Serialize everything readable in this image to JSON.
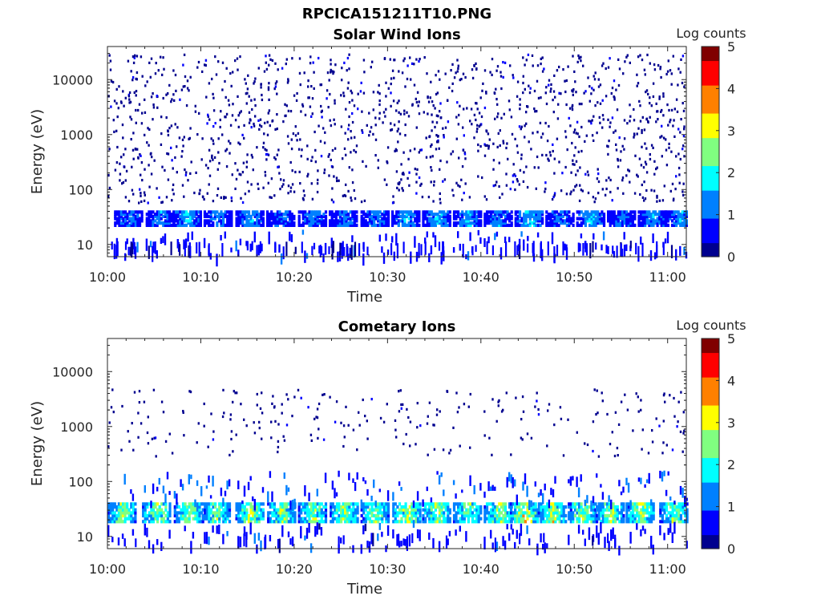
{
  "figure": {
    "title": "RPCICA151211T10.PNG"
  },
  "colors": {
    "colormap": [
      "#00008f",
      "#0000ff",
      "#0080ff",
      "#00ffff",
      "#80ff80",
      "#ffff00",
      "#ff8000",
      "#ff0000",
      "#800000"
    ],
    "axis": "#262626"
  },
  "chart_data": [
    {
      "type": "heatmap",
      "title": "Solar Wind Ions",
      "xlabel": "Time",
      "ylabel": "Energy (eV)",
      "y_scale": "log",
      "x_ticks": [
        "10:00",
        "10:10",
        "10:20",
        "10:30",
        "10:40",
        "10:50",
        "11:00"
      ],
      "y_ticks": [
        "10",
        "100",
        "1000",
        "10000"
      ],
      "xlim": [
        "10:00",
        "11:02"
      ],
      "ylim": [
        6,
        40000
      ],
      "colorbar": {
        "label": "Log counts",
        "range": [
          0,
          5
        ],
        "ticks": [
          "0",
          "1",
          "2",
          "3",
          "4",
          "5"
        ]
      },
      "background_counts": {
        "energy_range_eV": [
          60,
          30000
        ],
        "log_counts": 0.2
      },
      "bursts": [
        {
          "t_min": 2.2,
          "log_counts": 1.3
        },
        {
          "t_min": 5.6,
          "log_counts": 1.4
        },
        {
          "t_min": 8.5,
          "log_counts": 1.6
        },
        {
          "t_min": 11.8,
          "log_counts": 1.3
        },
        {
          "t_min": 15.2,
          "log_counts": 1.5
        },
        {
          "t_min": 18.5,
          "log_counts": 1.2
        },
        {
          "t_min": 21.9,
          "log_counts": 1.4
        },
        {
          "t_min": 25.2,
          "log_counts": 1.3
        },
        {
          "t_min": 28.6,
          "log_counts": 1.3
        },
        {
          "t_min": 31.9,
          "log_counts": 1.5
        },
        {
          "t_min": 35.2,
          "log_counts": 1.6
        },
        {
          "t_min": 38.5,
          "log_counts": 1.5
        },
        {
          "t_min": 41.8,
          "log_counts": 1.4
        },
        {
          "t_min": 45.1,
          "log_counts": 1.7
        },
        {
          "t_min": 48.4,
          "log_counts": 1.3
        },
        {
          "t_min": 51.7,
          "log_counts": 1.6
        },
        {
          "t_min": 55.0,
          "log_counts": 1.3
        },
        {
          "t_min": 58.3,
          "log_counts": 1.4
        },
        {
          "t_min": 61.2,
          "log_counts": 1.5
        }
      ]
    },
    {
      "type": "heatmap",
      "title": "Cometary Ions",
      "xlabel": "Time",
      "ylabel": "Energy (eV)",
      "y_scale": "log",
      "x_ticks": [
        "10:00",
        "10:10",
        "10:20",
        "10:30",
        "10:40",
        "10:50",
        "11:00"
      ],
      "y_ticks": [
        "10",
        "100",
        "1000",
        "10000"
      ],
      "xlim": [
        "10:00",
        "11:02"
      ],
      "ylim": [
        6,
        40000
      ],
      "colorbar": {
        "label": "Log counts",
        "range": [
          0,
          5
        ],
        "ticks": [
          "0",
          "1",
          "2",
          "3",
          "4",
          "5"
        ]
      },
      "background_counts": {
        "energy_range_eV": [
          300,
          5000
        ],
        "log_counts": 0.2
      },
      "bursts": [
        {
          "t_min": 1.5,
          "log_counts": 2.6
        },
        {
          "t_min": 5.2,
          "log_counts": 2.8
        },
        {
          "t_min": 8.6,
          "log_counts": 2.6
        },
        {
          "t_min": 11.6,
          "log_counts": 2.5
        },
        {
          "t_min": 15.2,
          "log_counts": 2.8
        },
        {
          "t_min": 18.6,
          "log_counts": 2.7
        },
        {
          "t_min": 21.9,
          "log_counts": 2.7
        },
        {
          "t_min": 25.3,
          "log_counts": 2.8
        },
        {
          "t_min": 28.6,
          "log_counts": 2.7
        },
        {
          "t_min": 32.0,
          "log_counts": 2.9
        },
        {
          "t_min": 35.2,
          "log_counts": 2.8
        },
        {
          "t_min": 38.5,
          "log_counts": 2.6
        },
        {
          "t_min": 41.8,
          "log_counts": 2.8
        },
        {
          "t_min": 44.6,
          "log_counts": 3.3
        },
        {
          "t_min": 47.6,
          "log_counts": 2.9
        },
        {
          "t_min": 50.8,
          "log_counts": 2.8
        },
        {
          "t_min": 53.8,
          "log_counts": 2.7
        },
        {
          "t_min": 57.0,
          "log_counts": 2.9
        },
        {
          "t_min": 60.6,
          "log_counts": 2.6
        }
      ]
    }
  ]
}
